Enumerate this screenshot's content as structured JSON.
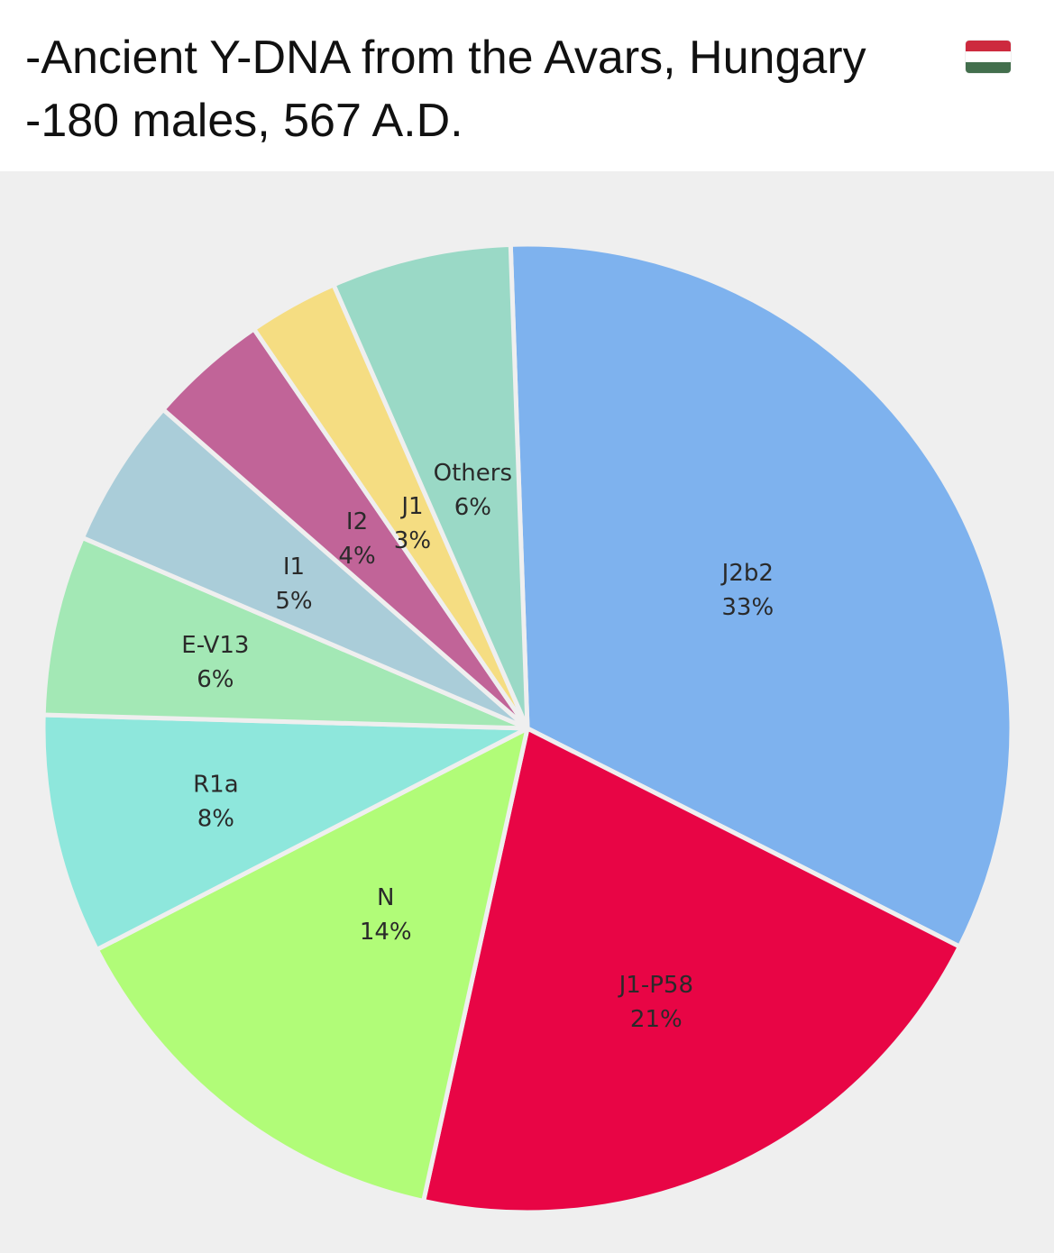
{
  "caption": {
    "line1": "-Ancient Y-DNA from the Avars, Hungary",
    "line2": "-180 males, 567 A.D.",
    "flag_icon": "hungary-flag-icon",
    "flag_colors": [
      "#CD2A3E",
      "#FFFFFF",
      "#436F4D"
    ]
  },
  "chart_data": {
    "type": "pie",
    "title": "",
    "start_angle_deg": -2,
    "direction": "clockwise",
    "slices": [
      {
        "label": "J2b2",
        "value": 33,
        "pct_label": "33%",
        "color": "#7EB2EE"
      },
      {
        "label": "J1-P58",
        "value": 21,
        "pct_label": "21%",
        "color": "#E80545"
      },
      {
        "label": "N",
        "value": 14,
        "pct_label": "14%",
        "color": "#B1FC78"
      },
      {
        "label": "R1a",
        "value": 8,
        "pct_label": "8%",
        "color": "#8EE7DC"
      },
      {
        "label": "E-V13",
        "value": 6,
        "pct_label": "6%",
        "color": "#A3E8B5"
      },
      {
        "label": "I1",
        "value": 5,
        "pct_label": "5%",
        "color": "#AACDD9"
      },
      {
        "label": "I2",
        "value": 4,
        "pct_label": "4%",
        "color": "#C16498"
      },
      {
        "label": "J1",
        "value": 3,
        "pct_label": "3%",
        "color": "#F5DD82"
      },
      {
        "label": "Others",
        "value": 6,
        "pct_label": "6%",
        "color": "#9AD9C6"
      }
    ]
  }
}
